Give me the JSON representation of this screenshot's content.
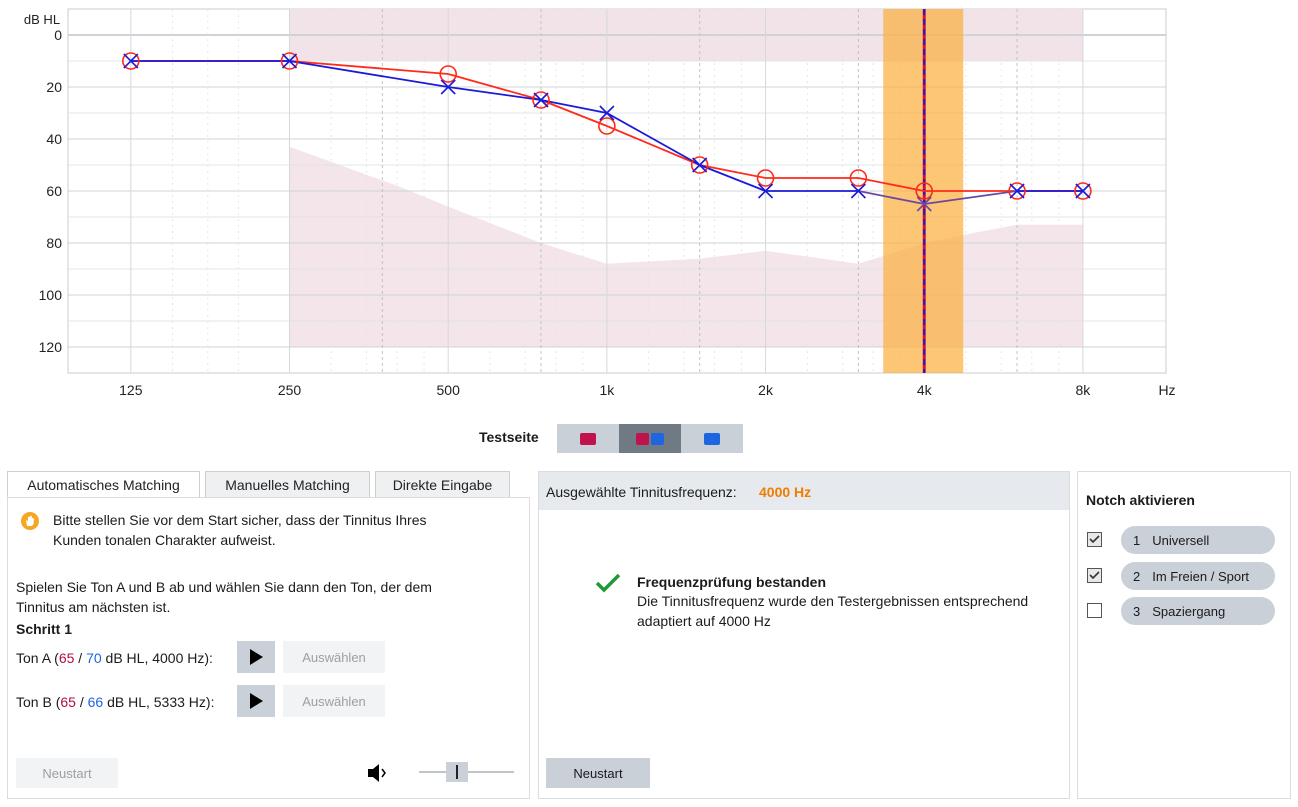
{
  "chart_data": {
    "type": "line",
    "ylabel": "dB HL",
    "xunit": "Hz",
    "x_ticks": [
      "125",
      "250",
      "500",
      "1k",
      "2k",
      "4k",
      "8k"
    ],
    "y_ticks": [
      "0",
      "20",
      "40",
      "60",
      "80",
      "100",
      "120"
    ],
    "ylim": [
      -10,
      130
    ],
    "y_inverted": true,
    "x_scale": "log",
    "xlim": [
      95,
      11500
    ],
    "series": [
      {
        "color": "#ff2a1a",
        "marker": "circle",
        "x": [
          125,
          250,
          500,
          750,
          1000,
          1500,
          2000,
          3000,
          4000,
          6000,
          8000
        ],
        "y": [
          10,
          10,
          15,
          25,
          35,
          50,
          55,
          55,
          60,
          60,
          60
        ]
      },
      {
        "color": "#1a1ad8",
        "marker": "x",
        "x": [
          125,
          250,
          500,
          750,
          1000,
          1500,
          2000,
          3000,
          4000,
          6000,
          8000
        ],
        "y": [
          10,
          10,
          20,
          25,
          30,
          50,
          60,
          60,
          65,
          60,
          60
        ]
      }
    ],
    "selected_frequency": 4000
  },
  "testseite": {
    "label": "Testseite",
    "options": [
      "left",
      "both",
      "right"
    ],
    "selected": "both"
  },
  "tabs": [
    "Automatisches Matching",
    "Manuelles Matching",
    "Direkte Eingabe"
  ],
  "auto": {
    "warning": "Bitte stellen Sie vor dem Start sicher, dass der Tinnitus Ihres Kunden tonalen Charakter aufweist.",
    "instruction": "Spielen Sie Ton A und B ab und wählen Sie dann den Ton, der dem Tinnitus am nächsten ist.",
    "step": "Schritt 1",
    "tonA": {
      "prefix": "Ton A (",
      "left": "65",
      "sep": "/",
      "right": "70",
      "suffix": "dB HL, 4000 Hz):"
    },
    "tonB": {
      "prefix": "Ton B (",
      "left": "65",
      "sep": "/",
      "right": "66",
      "suffix": "dB HL, 5333 Hz):"
    },
    "select_label": "Auswählen",
    "restart_label": "Neustart",
    "volume_level": 0.4
  },
  "freq": {
    "label": "Ausgewählte Tinnitusfrequenz:",
    "value": "4000 Hz",
    "success_title": "Frequenzprüfung bestanden",
    "success_text": "Die Tinnitusfrequenz wurde den Testergebnissen entsprechend adaptiert auf 4000 Hz",
    "restart_label": "Neustart"
  },
  "notch": {
    "title": "Notch aktivieren",
    "items": [
      {
        "num": "1",
        "label": "Universell",
        "checked": true
      },
      {
        "num": "2",
        "label": "Im Freien / Sport",
        "checked": true
      },
      {
        "num": "3",
        "label": "Spaziergang",
        "checked": false
      }
    ]
  },
  "colors": {
    "accent": "#f07c00",
    "left_ear": "#c0124d",
    "right_ear": "#1e66e0",
    "highlight": "#fbb040"
  }
}
